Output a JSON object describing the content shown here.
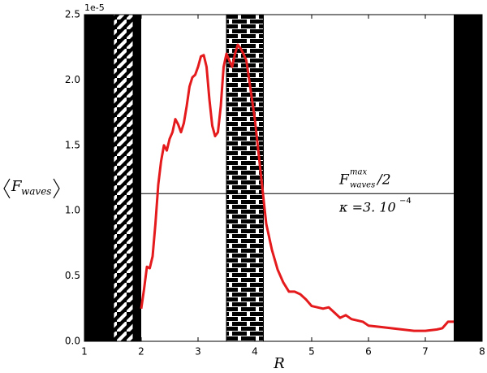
{
  "chart_data": {
    "type": "line",
    "xlabel": "R",
    "ylabel": {
      "main": "F",
      "sub": "waves"
    },
    "offset_text": "1e-5",
    "xlim": [
      1,
      8
    ],
    "ylim": [
      0,
      2.5
    ],
    "xticks": [
      1,
      2,
      3,
      4,
      5,
      6,
      7,
      8
    ],
    "yticks": [
      {
        "value": 0,
        "label": "0.0"
      },
      {
        "value": 0.5,
        "label": "0.5"
      },
      {
        "value": 1,
        "label": "1.0"
      },
      {
        "value": 1.5,
        "label": "1.5"
      },
      {
        "value": 2,
        "label": "2.0"
      },
      {
        "value": 2.5,
        "label": "2.5"
      }
    ],
    "spans": [
      {
        "x": [
          1,
          2
        ],
        "style": "black"
      },
      {
        "x": [
          1.52,
          1.85
        ],
        "style": "hatch"
      },
      {
        "x": [
          3.5,
          4.15
        ],
        "style": "dash"
      },
      {
        "x": [
          7.5,
          8
        ],
        "style": "black"
      }
    ],
    "hline": {
      "y": 1.13,
      "x": [
        2,
        7.5
      ],
      "color": "#000000"
    },
    "annotations": [
      {
        "base": "F",
        "sup": "max",
        "sub": "waves",
        "rest": "/2"
      },
      {
        "base": "κ =3. 10",
        "sup": "−4"
      }
    ],
    "series": [
      {
        "color": "#e41a1c",
        "x": [
          2.0,
          2.05,
          2.1,
          2.15,
          2.2,
          2.25,
          2.3,
          2.35,
          2.4,
          2.45,
          2.5,
          2.55,
          2.6,
          2.65,
          2.7,
          2.75,
          2.8,
          2.85,
          2.9,
          2.95,
          3.0,
          3.05,
          3.1,
          3.15,
          3.2,
          3.25,
          3.3,
          3.35,
          3.4,
          3.45,
          3.5,
          3.55,
          3.6,
          3.65,
          3.7,
          3.75,
          3.8,
          3.85,
          3.9,
          3.95,
          4.0,
          4.05,
          4.1,
          4.15,
          4.2,
          4.3,
          4.4,
          4.5,
          4.6,
          4.7,
          4.8,
          4.9,
          5.0,
          5.1,
          5.2,
          5.3,
          5.4,
          5.5,
          5.6,
          5.7,
          5.8,
          5.9,
          6.0,
          6.2,
          6.4,
          6.6,
          6.8,
          7.0,
          7.2,
          7.3,
          7.4,
          7.5
        ],
        "values": [
          0.25,
          0.4,
          0.57,
          0.56,
          0.65,
          0.9,
          1.2,
          1.38,
          1.5,
          1.46,
          1.55,
          1.6,
          1.7,
          1.66,
          1.6,
          1.67,
          1.8,
          1.95,
          2.02,
          2.04,
          2.1,
          2.18,
          2.19,
          2.1,
          1.85,
          1.65,
          1.57,
          1.6,
          1.8,
          2.1,
          2.2,
          2.15,
          2.1,
          2.2,
          2.27,
          2.24,
          2.2,
          2.15,
          2.0,
          1.85,
          1.7,
          1.5,
          1.3,
          1.1,
          0.9,
          0.7,
          0.55,
          0.45,
          0.38,
          0.38,
          0.36,
          0.32,
          0.27,
          0.26,
          0.25,
          0.26,
          0.22,
          0.18,
          0.2,
          0.17,
          0.16,
          0.15,
          0.12,
          0.11,
          0.1,
          0.09,
          0.08,
          0.08,
          0.09,
          0.1,
          0.15,
          0.15
        ]
      }
    ]
  }
}
